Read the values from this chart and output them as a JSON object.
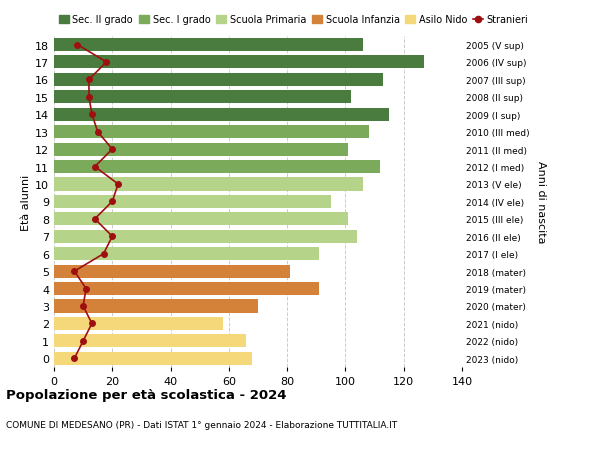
{
  "ages": [
    18,
    17,
    16,
    15,
    14,
    13,
    12,
    11,
    10,
    9,
    8,
    7,
    6,
    5,
    4,
    3,
    2,
    1,
    0
  ],
  "years": [
    "2005 (V sup)",
    "2006 (IV sup)",
    "2007 (III sup)",
    "2008 (II sup)",
    "2009 (I sup)",
    "2010 (III med)",
    "2011 (II med)",
    "2012 (I med)",
    "2013 (V ele)",
    "2014 (IV ele)",
    "2015 (III ele)",
    "2016 (II ele)",
    "2017 (I ele)",
    "2018 (mater)",
    "2019 (mater)",
    "2020 (mater)",
    "2021 (nido)",
    "2022 (nido)",
    "2023 (nido)"
  ],
  "bar_values": [
    106,
    127,
    113,
    102,
    115,
    108,
    101,
    112,
    106,
    95,
    101,
    104,
    91,
    81,
    91,
    70,
    58,
    66,
    68
  ],
  "bar_colors": [
    "#4a7c3f",
    "#4a7c3f",
    "#4a7c3f",
    "#4a7c3f",
    "#4a7c3f",
    "#7aaa5a",
    "#7aaa5a",
    "#7aaa5a",
    "#b5d48a",
    "#b5d48a",
    "#b5d48a",
    "#b5d48a",
    "#b5d48a",
    "#d4813a",
    "#d4813a",
    "#d4813a",
    "#f5d87a",
    "#f5d87a",
    "#f5d87a"
  ],
  "stranieri_values": [
    8,
    18,
    12,
    12,
    13,
    15,
    20,
    14,
    22,
    20,
    14,
    20,
    17,
    7,
    11,
    10,
    13,
    10,
    7
  ],
  "title": "Popolazione per età scolastica - 2024",
  "subtitle": "COMUNE DI MEDESANO (PR) - Dati ISTAT 1° gennaio 2024 - Elaborazione TUTTITALIA.IT",
  "ylabel_left": "Età alunni",
  "ylabel_right": "Anni di nascita",
  "xlim": [
    0,
    140
  ],
  "xticks": [
    0,
    20,
    40,
    60,
    80,
    100,
    120,
    140
  ],
  "legend_labels": [
    "Sec. II grado",
    "Sec. I grado",
    "Scuola Primaria",
    "Scuola Infanzia",
    "Asilo Nido",
    "Stranieri"
  ],
  "legend_colors": [
    "#4a7c3f",
    "#7aaa5a",
    "#b5d48a",
    "#d4813a",
    "#f5d87a",
    "#9e1010"
  ],
  "bar_height": 0.75,
  "background_color": "#ffffff",
  "grid_color": "#cccccc"
}
